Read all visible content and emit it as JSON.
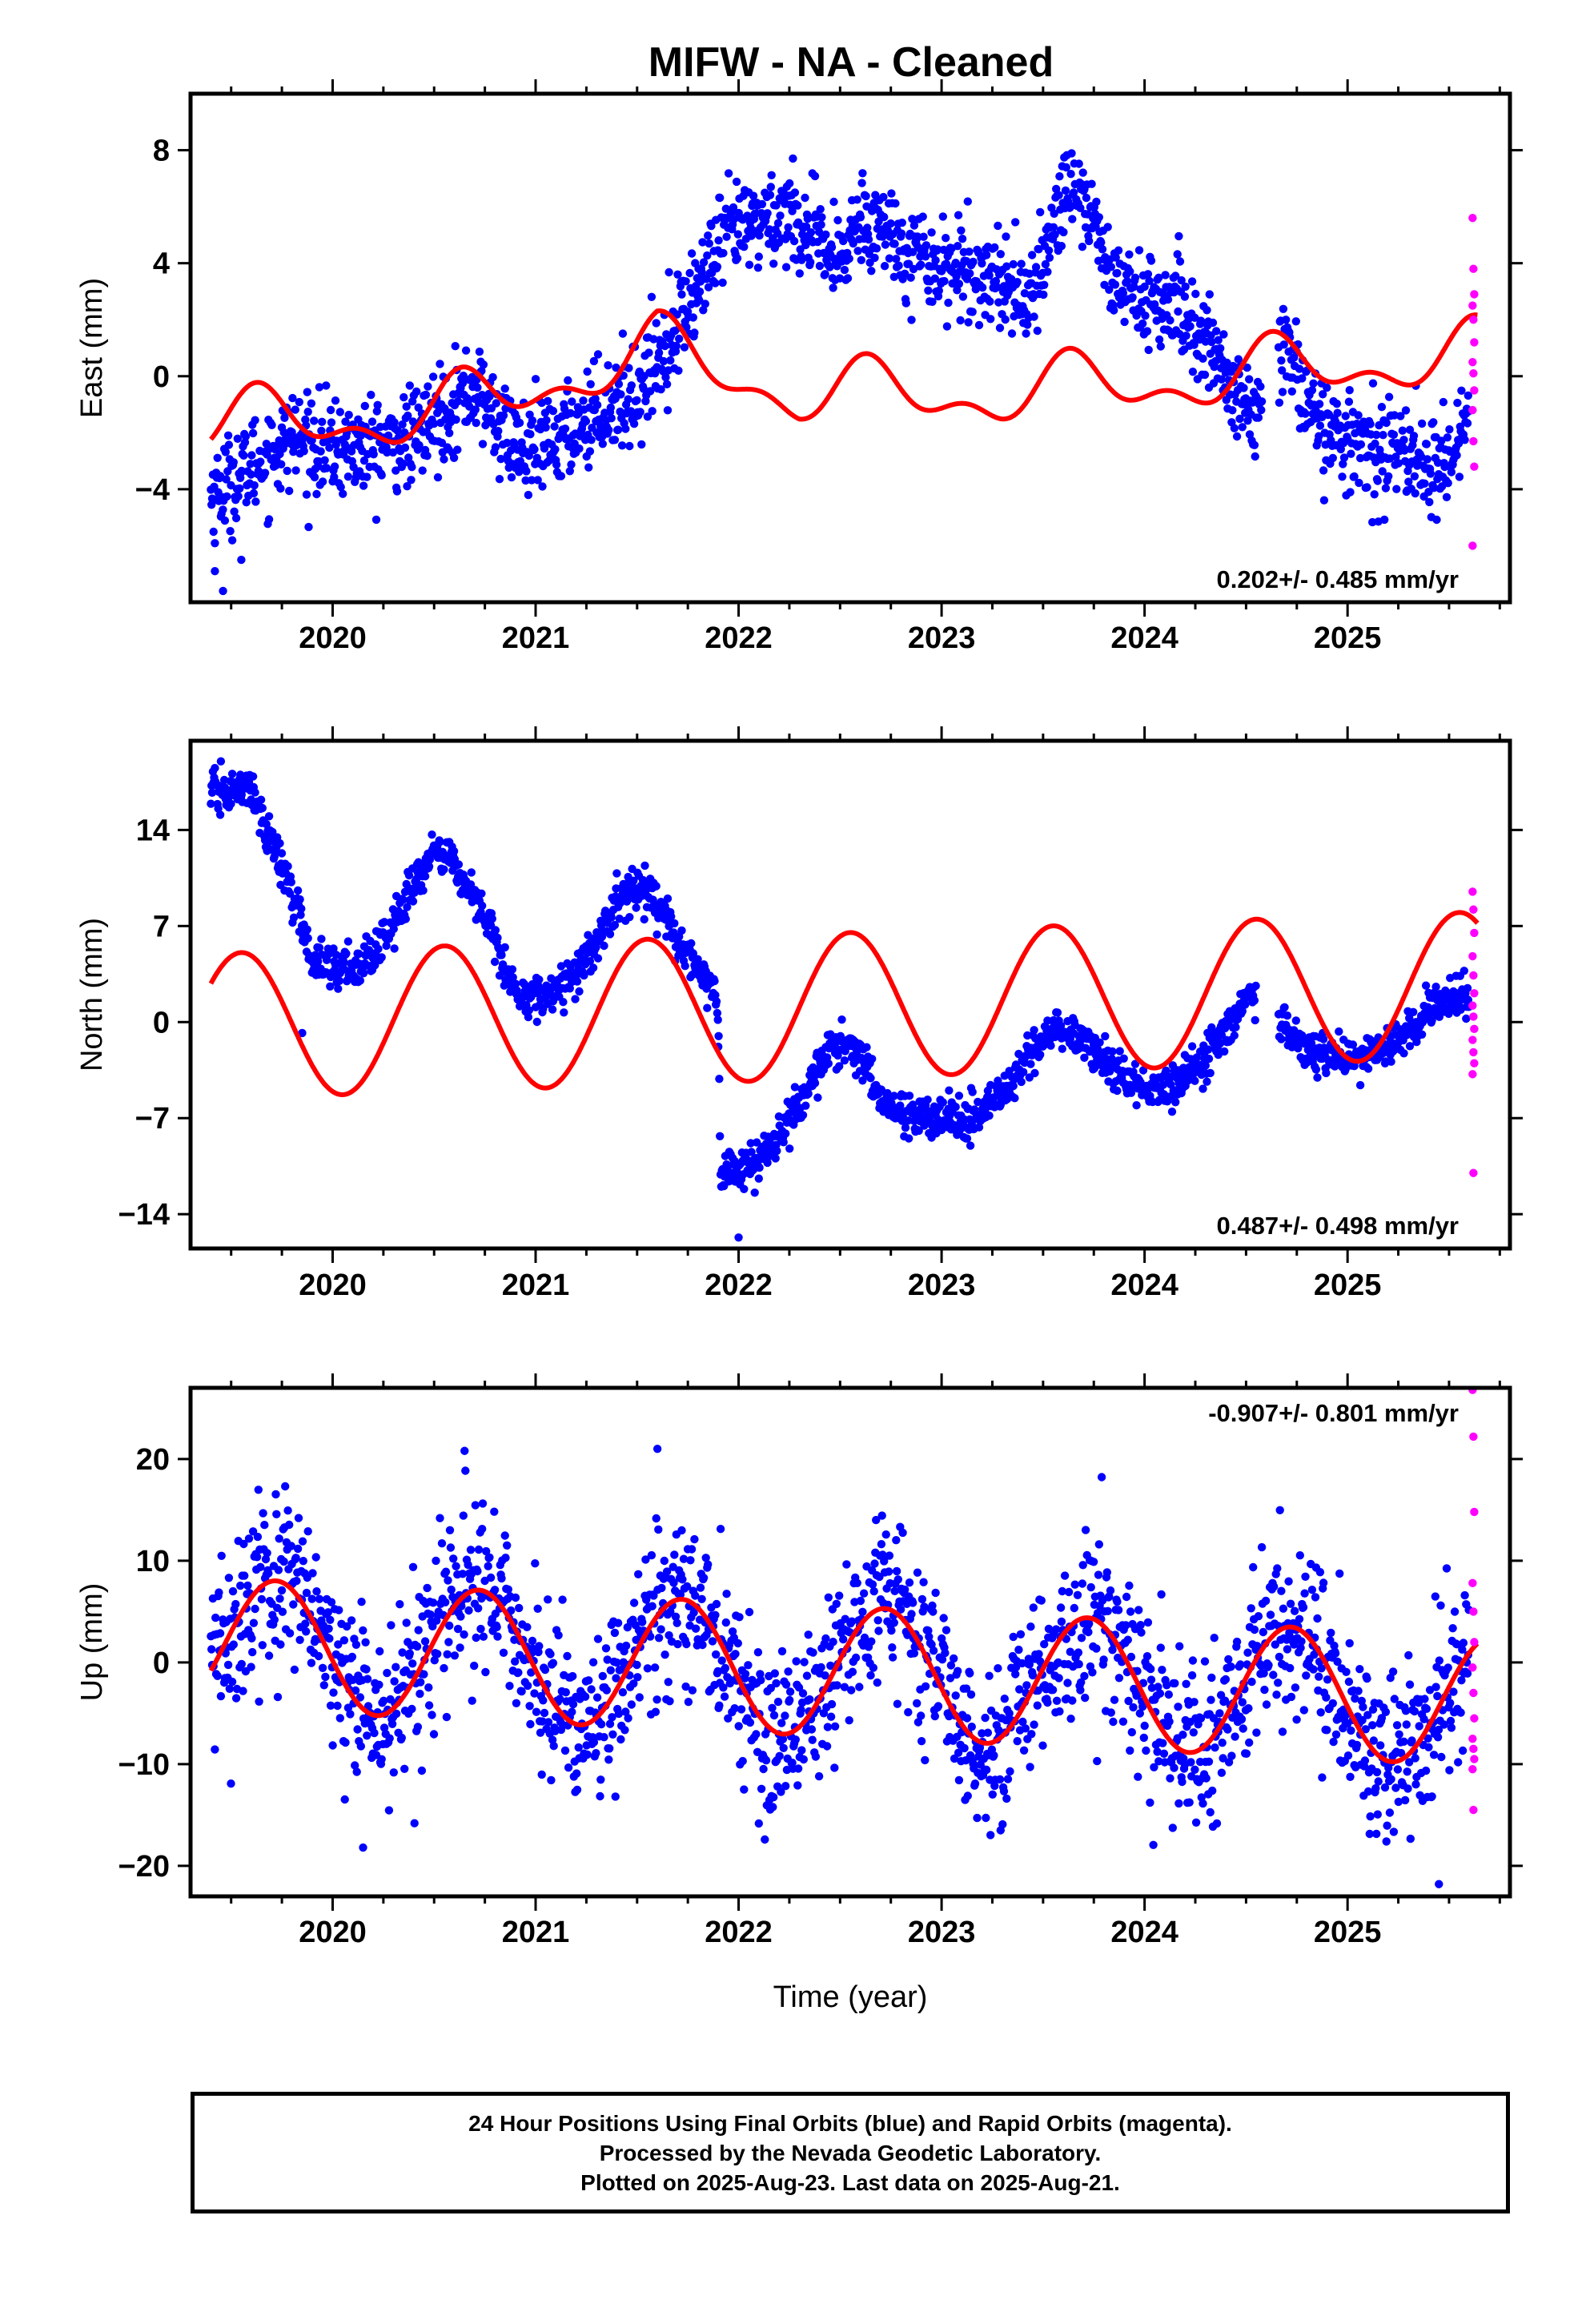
{
  "title": "MIFW  - NA - Cleaned",
  "colors": {
    "final": "#0000ff",
    "rapid": "#ff00ff",
    "model": "#ff0000",
    "frame": "#000000"
  },
  "caption": {
    "line1": "24 Hour Positions Using Final Orbits (blue) and Rapid Orbits (magenta).",
    "line2": "Processed by the Nevada Geodetic Laboratory.",
    "line3": "Plotted on 2025-Aug-23. Last data on 2025-Aug-21."
  },
  "chart_data": [
    {
      "type": "scatter",
      "ylabel": "East (mm)",
      "xlabel": "",
      "xlim": [
        2019.3,
        2025.8
      ],
      "ylim": [
        -8,
        10
      ],
      "yticks": [
        -4,
        0,
        4,
        8
      ],
      "ytick_labels": [
        "−4",
        "0",
        "4",
        "8"
      ],
      "xticks": [
        2020,
        2021,
        2022,
        2023,
        2024,
        2025
      ],
      "rate": "0.202+/- 0.485 mm/yr",
      "rate_position": "bottom-right",
      "trend": [
        [
          2019.4,
          -4.2
        ],
        [
          2019.6,
          -3.2
        ],
        [
          2019.8,
          -2.2
        ],
        [
          2020.0,
          -2.6
        ],
        [
          2020.2,
          -2.5
        ],
        [
          2020.4,
          -2.2
        ],
        [
          2020.55,
          -1.2
        ],
        [
          2020.7,
          -0.4
        ],
        [
          2020.8,
          -1.5
        ],
        [
          2020.95,
          -2.8
        ],
        [
          2021.1,
          -2.3
        ],
        [
          2021.3,
          -1.2
        ],
        [
          2021.5,
          -0.6
        ],
        [
          2021.6,
          0.6
        ],
        [
          2021.75,
          2.5
        ],
        [
          2021.85,
          3.8
        ],
        [
          2021.95,
          5.0
        ],
        [
          2022.1,
          5.5
        ],
        [
          2022.25,
          5.8
        ],
        [
          2022.4,
          4.6
        ],
        [
          2022.5,
          3.8
        ],
        [
          2022.6,
          5.8
        ],
        [
          2022.75,
          5.0
        ],
        [
          2022.9,
          4.2
        ],
        [
          2023.05,
          3.8
        ],
        [
          2023.2,
          3.6
        ],
        [
          2023.3,
          3.5
        ],
        [
          2023.45,
          2.5
        ],
        [
          2023.55,
          5.5
        ],
        [
          2023.65,
          7.0
        ],
        [
          2023.75,
          5.5
        ],
        [
          2023.85,
          3.2
        ],
        [
          2024.0,
          2.8
        ],
        [
          2024.15,
          2.4
        ],
        [
          2024.3,
          1.3
        ],
        [
          2024.45,
          -0.6
        ],
        [
          2024.55,
          -1.8
        ],
        [
          2024.7,
          1.3
        ],
        [
          2024.8,
          -0.8
        ],
        [
          2024.95,
          -2.4
        ],
        [
          2025.1,
          -2.4
        ],
        [
          2025.2,
          -2.8
        ],
        [
          2025.3,
          -2.6
        ],
        [
          2025.45,
          -3.5
        ],
        [
          2025.55,
          -2.0
        ],
        [
          2025.62,
          -0.8
        ]
      ],
      "spread": 1.0,
      "model": {
        "mean": 0.202,
        "rate": 0.202,
        "t0": 2022.5,
        "a1": 0.9,
        "t1": 2019.65,
        "a2": 0.55,
        "t2": 2019.62,
        "wobble": [
          [
            2019.4,
            -1.3
          ],
          [
            2020.5,
            -1.2
          ],
          [
            2021.6,
            0.9
          ],
          [
            2022.3,
            -0.8
          ],
          [
            2023.3,
            -1.0
          ],
          [
            2024.4,
            -0.6
          ],
          [
            2025.0,
            -0.3
          ],
          [
            2025.6,
            -0.1
          ]
        ]
      },
      "rapid": {
        "x": 2025.62,
        "values": [
          5.6,
          3.8,
          2.9,
          2.5,
          2.0,
          1.2,
          0.5,
          0.1,
          -0.5,
          -1.2,
          -2.3,
          -3.2,
          -6.0
        ]
      },
      "outliers": [
        [
          2019.42,
          -6.9
        ],
        [
          2019.46,
          -7.6
        ],
        [
          2019.55,
          -6.5
        ]
      ]
    },
    {
      "type": "scatter",
      "ylabel": "North (mm)",
      "xlabel": "",
      "xlim": [
        2019.3,
        2025.8
      ],
      "ylim": [
        -16.5,
        20.5
      ],
      "yticks": [
        -14,
        -7,
        0,
        7,
        14
      ],
      "ytick_labels": [
        "−14",
        "−7",
        "0",
        "7",
        "14"
      ],
      "xticks": [
        2020,
        2021,
        2022,
        2023,
        2024,
        2025
      ],
      "rate": "0.487+/- 0.498 mm/yr",
      "rate_position": "bottom-right",
      "trend": [
        [
          2019.4,
          16.8
        ],
        [
          2019.5,
          16.8
        ],
        [
          2019.6,
          17.0
        ],
        [
          2019.7,
          13.0
        ],
        [
          2019.8,
          9.5
        ],
        [
          2019.9,
          4.5
        ],
        [
          2020.0,
          4.0
        ],
        [
          2020.15,
          4.2
        ],
        [
          2020.3,
          7.0
        ],
        [
          2020.45,
          11.5
        ],
        [
          2020.55,
          12.5
        ],
        [
          2020.7,
          9.0
        ],
        [
          2020.8,
          6.0
        ],
        [
          2020.9,
          2.0
        ],
        [
          2021.05,
          2.0
        ],
        [
          2021.2,
          3.5
        ],
        [
          2021.3,
          6.0
        ],
        [
          2021.45,
          9.5
        ],
        [
          2021.55,
          9.5
        ],
        [
          2021.7,
          6.0
        ],
        [
          2021.85,
          3.0
        ],
        [
          2021.9,
          1.0
        ],
        [
          2021.91,
          -10.5
        ],
        [
          2022.0,
          -11.0
        ],
        [
          2022.15,
          -9.5
        ],
        [
          2022.3,
          -6.0
        ],
        [
          2022.45,
          -2.0
        ],
        [
          2022.55,
          -1.5
        ],
        [
          2022.7,
          -5.5
        ],
        [
          2022.85,
          -7.0
        ],
        [
          2023.0,
          -7.0
        ],
        [
          2023.15,
          -7.0
        ],
        [
          2023.3,
          -5.5
        ],
        [
          2023.45,
          -2.0
        ],
        [
          2023.55,
          -0.5
        ],
        [
          2023.7,
          -1.5
        ],
        [
          2023.85,
          -3.5
        ],
        [
          2024.0,
          -5.0
        ],
        [
          2024.15,
          -4.5
        ],
        [
          2024.3,
          -2.5
        ],
        [
          2024.45,
          0.0
        ],
        [
          2024.5,
          2.0
        ],
        [
          2024.65,
          0.5
        ],
        [
          2024.75,
          -1.5
        ],
        [
          2024.9,
          -2.5
        ],
        [
          2025.05,
          -2.5
        ],
        [
          2025.2,
          -2.0
        ],
        [
          2025.3,
          -0.5
        ],
        [
          2025.45,
          1.5
        ],
        [
          2025.6,
          2.0
        ]
      ],
      "spread": 0.9,
      "model": {
        "mean": 1.2,
        "rate": 0.487,
        "t0": 2022.5,
        "a1": 5.3,
        "t1": 2019.55,
        "a2": 0.0,
        "t2": 2019.55,
        "wobble": []
      },
      "rapid": {
        "x": 2025.62,
        "values": [
          9.5,
          8.2,
          6.5,
          4.8,
          3.4,
          2.1,
          1.2,
          0.4,
          -0.5,
          -1.3,
          -2.2,
          -3.0,
          -3.8,
          -11.0
        ]
      },
      "outliers": [
        [
          2021.9,
          -1.8
        ],
        [
          2022.0,
          -15.7
        ],
        [
          2019.85,
          -0.8
        ]
      ]
    },
    {
      "type": "scatter",
      "ylabel": "Up (mm)",
      "xlabel": "Time (year)",
      "xlim": [
        2019.3,
        2025.8
      ],
      "ylim": [
        -23,
        27
      ],
      "yticks": [
        -20,
        -10,
        0,
        10,
        20
      ],
      "ytick_labels": [
        "−20",
        "−10",
        "0",
        "10",
        "20"
      ],
      "xticks": [
        2020,
        2021,
        2022,
        2023,
        2024,
        2025
      ],
      "rate": "-0.907+/- 0.801 mm/yr",
      "rate_position": "top-right",
      "trend": [],
      "spread": 4.2,
      "model": {
        "mean": -0.9,
        "rate": -0.907,
        "t0": 2022.5,
        "a1": 6.4,
        "t1": 2019.72,
        "a2": 0.0,
        "t2": 2019.72,
        "wobble": []
      },
      "rapid": {
        "x": 2025.62,
        "values": [
          26.8,
          22.2,
          14.8,
          7.8,
          5.0,
          2.0,
          -0.5,
          -3.0,
          -5.5,
          -7.5,
          -8.5,
          -9.5,
          -10.5,
          -14.5
        ]
      },
      "outliers": [
        [
          2020.65,
          20.8
        ],
        [
          2021.6,
          21.0
        ],
        [
          2020.15,
          -18.2
        ],
        [
          2025.45,
          -21.8
        ]
      ]
    }
  ]
}
